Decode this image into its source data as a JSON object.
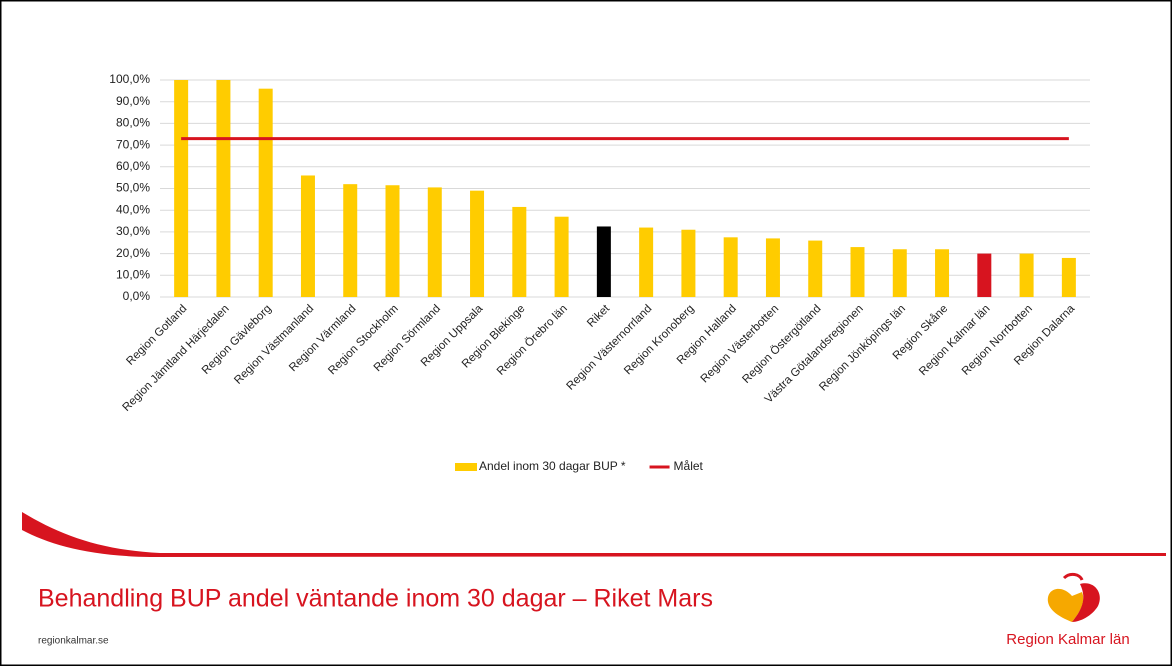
{
  "chart_data": {
    "type": "bar",
    "categories": [
      "Region Gotland",
      "Region Jämtland Härjedalen",
      "Region Gävleborg",
      "Region Västmanland",
      "Region Värmland",
      "Region Stockholm",
      "Region Sörmland",
      "Region Uppsala",
      "Region Blekinge",
      "Region Örebro län",
      "Riket",
      "Region Västernorrland",
      "Region Kronoberg",
      "Region Halland",
      "Region Västerbotten",
      "Region Östergötland",
      "Västra Götalandsregionen",
      "Region Jönköpings län",
      "Region Skåne",
      "Region Kalmar län",
      "Region Norrbotten",
      "Region Dalarna"
    ],
    "series": [
      {
        "name": "Andel inom 30 dagar BUP *",
        "type": "bar",
        "color": "#ffcc00",
        "colors": [
          "#ffcc00",
          "#ffcc00",
          "#ffcc00",
          "#ffcc00",
          "#ffcc00",
          "#ffcc00",
          "#ffcc00",
          "#ffcc00",
          "#ffcc00",
          "#ffcc00",
          "#000000",
          "#ffcc00",
          "#ffcc00",
          "#ffcc00",
          "#ffcc00",
          "#ffcc00",
          "#ffcc00",
          "#ffcc00",
          "#ffcc00",
          "#d7141f",
          "#ffcc00",
          "#ffcc00"
        ],
        "values": [
          100,
          100,
          96,
          56,
          52,
          51.5,
          50.5,
          49,
          41.5,
          37,
          32.5,
          32,
          31,
          27.5,
          27,
          26,
          23,
          22,
          22,
          20,
          20,
          18
        ]
      },
      {
        "name": "Målet",
        "type": "line",
        "color": "#d7141f",
        "values": [
          73,
          73,
          73,
          73,
          73,
          73,
          73,
          73,
          73,
          73,
          73,
          73,
          73,
          73,
          73,
          73,
          73,
          73,
          73,
          73,
          73,
          73
        ]
      }
    ],
    "ylim": [
      0,
      100
    ],
    "yticks": [
      {
        "value": 0,
        "label": "0,0%"
      },
      {
        "value": 10,
        "label": "10,0%"
      },
      {
        "value": 20,
        "label": "20,0%"
      },
      {
        "value": 30,
        "label": "30,0%"
      },
      {
        "value": 40,
        "label": "40,0%"
      },
      {
        "value": 50,
        "label": "50,0%"
      },
      {
        "value": 60,
        "label": "60,0%"
      },
      {
        "value": 70,
        "label": "70,0%"
      },
      {
        "value": 80,
        "label": "80,0%"
      },
      {
        "value": 90,
        "label": "90,0%"
      },
      {
        "value": 100,
        "label": "100,0%"
      }
    ],
    "grid": true,
    "legend": "bottom"
  },
  "slide": {
    "title": "Behandling BUP andel väntande inom 30 dagar – Riket Mars",
    "website": "regionkalmar.se",
    "logo": "Region Kalmar län"
  }
}
